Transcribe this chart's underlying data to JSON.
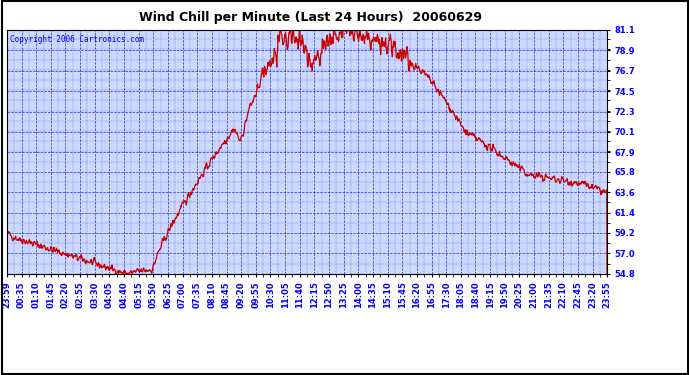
{
  "title": "Wind Chill per Minute (Last 24 Hours)  20060629",
  "copyright": "Copyright 2006 Cartronics.com",
  "line_color": "#cc0000",
  "bg_color": "#ffffff",
  "plot_bg_color": "#ccd9ff",
  "grid_color": "#0000cc",
  "border_color": "#000000",
  "ytick_labels": [
    54.8,
    57.0,
    59.2,
    61.4,
    63.6,
    65.8,
    67.9,
    70.1,
    72.3,
    74.5,
    76.7,
    78.9,
    81.1
  ],
  "ylim": [
    54.8,
    81.1
  ],
  "xtick_labels": [
    "23:59",
    "00:35",
    "01:10",
    "01:45",
    "02:20",
    "02:55",
    "03:30",
    "04:05",
    "04:40",
    "05:15",
    "05:50",
    "06:25",
    "07:00",
    "07:35",
    "08:10",
    "08:45",
    "09:20",
    "09:55",
    "10:30",
    "11:05",
    "11:40",
    "12:15",
    "12:50",
    "13:25",
    "14:00",
    "14:35",
    "15:10",
    "15:45",
    "16:20",
    "16:55",
    "17:30",
    "18:05",
    "18:40",
    "19:15",
    "19:50",
    "20:25",
    "21:00",
    "21:35",
    "22:10",
    "22:45",
    "23:20",
    "23:55"
  ],
  "num_points": 1440,
  "figsize": [
    6.9,
    3.75
  ],
  "dpi": 100,
  "title_fontsize": 9,
  "label_fontsize": 6,
  "copyright_fontsize": 5.5,
  "line_width": 0.9
}
